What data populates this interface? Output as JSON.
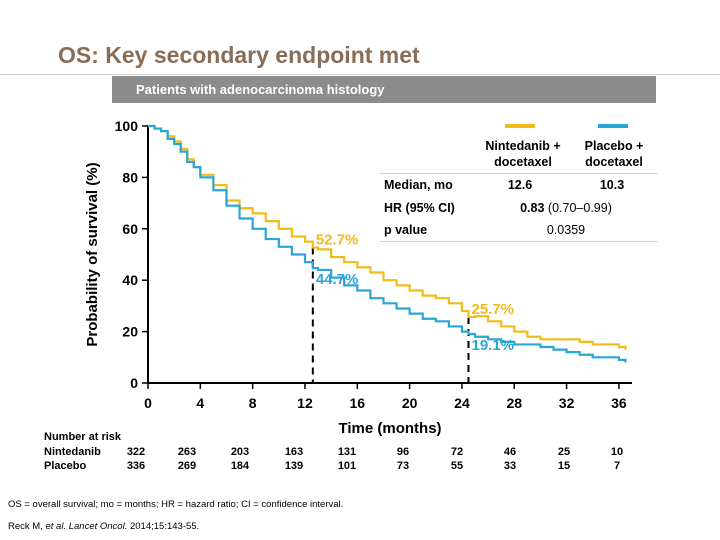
{
  "slide": {
    "title": "OS: Key secondary endpoint met",
    "banner": "Patients with adenocarcinoma histology",
    "footnote1": "OS = overall survival; mo = months; HR = hazard ratio; CI = confidence interval.",
    "footnote2_prefix": "Reck M, ",
    "footnote2_italic": "et al. Lancet Oncol.",
    "footnote2_suffix": " 2014;15:143-55."
  },
  "colors": {
    "nintedanib": "#f2bb1a",
    "placebo": "#2aa6d6",
    "title": "#8a6d57",
    "banner": "#8c8c8c"
  },
  "stats_table": {
    "col1": "Nintedanib +\ndocetaxel",
    "col2": "Placebo +\ndocetaxel",
    "rows": [
      {
        "label": "Median, mo",
        "v1": "12.6",
        "v2": "10.3"
      },
      {
        "label": "HR (95% CI)",
        "merged_bold": "0.83",
        "merged_rest": " (0.70–0.99)"
      },
      {
        "label": "p value",
        "merged": "0.0359"
      }
    ]
  },
  "risk_table": {
    "header": "Number at risk",
    "rows": [
      {
        "label": "Nintedanib",
        "values": [
          "322",
          "263",
          "203",
          "163",
          "131",
          "96",
          "72",
          "46",
          "25",
          "10"
        ]
      },
      {
        "label": "Placebo",
        "values": [
          "336",
          "269",
          "184",
          "139",
          "101",
          "73",
          "55",
          "33",
          "15",
          "7"
        ]
      }
    ]
  },
  "chart_data": {
    "type": "line",
    "xlabel": "Time (months)",
    "ylabel": "Probability of survival (%)",
    "xlim": [
      0,
      37
    ],
    "ylim": [
      0,
      100
    ],
    "xticks": [
      0,
      4,
      8,
      12,
      16,
      20,
      24,
      28,
      32,
      36
    ],
    "yticks": [
      0,
      20,
      40,
      60,
      80,
      100
    ],
    "grid": false,
    "series": [
      {
        "name": "Nintedanib + docetaxel",
        "color": "#f2bb1a",
        "x": [
          0,
          0.5,
          1,
          1.5,
          2,
          2.5,
          3,
          3.5,
          4,
          5,
          6,
          7,
          8,
          9,
          10,
          11,
          12,
          12.6,
          13,
          14,
          15,
          16,
          17,
          18,
          19,
          20,
          21,
          22,
          23,
          24,
          24.5,
          25,
          26,
          27,
          28,
          29,
          30,
          31,
          32,
          33,
          34,
          35,
          36,
          36.5
        ],
        "y": [
          100,
          99,
          98,
          96,
          94,
          91,
          87,
          84,
          81,
          77,
          71,
          68,
          66,
          63,
          60,
          57,
          55,
          52.7,
          52,
          49,
          47,
          45,
          43,
          40,
          38,
          36,
          34,
          33,
          31,
          28,
          25.7,
          26,
          24,
          22,
          20,
          18,
          17,
          17,
          17,
          16,
          15,
          15,
          14,
          13
        ]
      },
      {
        "name": "Placebo + docetaxel",
        "color": "#2aa6d6",
        "x": [
          0,
          0.5,
          1,
          1.5,
          2,
          2.5,
          3,
          3.5,
          4,
          5,
          6,
          7,
          8,
          9,
          10,
          11,
          12,
          12.6,
          13,
          14,
          15,
          16,
          17,
          18,
          19,
          20,
          21,
          22,
          23,
          24,
          24.5,
          25,
          26,
          27,
          28,
          29,
          30,
          31,
          32,
          33,
          34,
          35,
          36,
          36.5
        ],
        "y": [
          100,
          99,
          98,
          95,
          93,
          90,
          86,
          84,
          80,
          75,
          69,
          64,
          60,
          56,
          53,
          50,
          47,
          44.7,
          44,
          41,
          38,
          36,
          33,
          31,
          29,
          27,
          25,
          24,
          22,
          20,
          19.1,
          18,
          17,
          16,
          15,
          15,
          14,
          13,
          12,
          11,
          10,
          10,
          9,
          8
        ]
      }
    ],
    "annotations": [
      {
        "x": 12.6,
        "y": 52.7,
        "text": "52.7%",
        "series": "Nintedanib + docetaxel"
      },
      {
        "x": 12.6,
        "y": 44.7,
        "text": "44.7%",
        "series": "Placebo + docetaxel"
      },
      {
        "x": 24.5,
        "y": 25.7,
        "text": "25.7%",
        "series": "Nintedanib + docetaxel"
      },
      {
        "x": 24.5,
        "y": 19.1,
        "text": "19.1%",
        "series": "Placebo + docetaxel"
      }
    ],
    "reference_lines_x": [
      12.6,
      24.5
    ]
  }
}
